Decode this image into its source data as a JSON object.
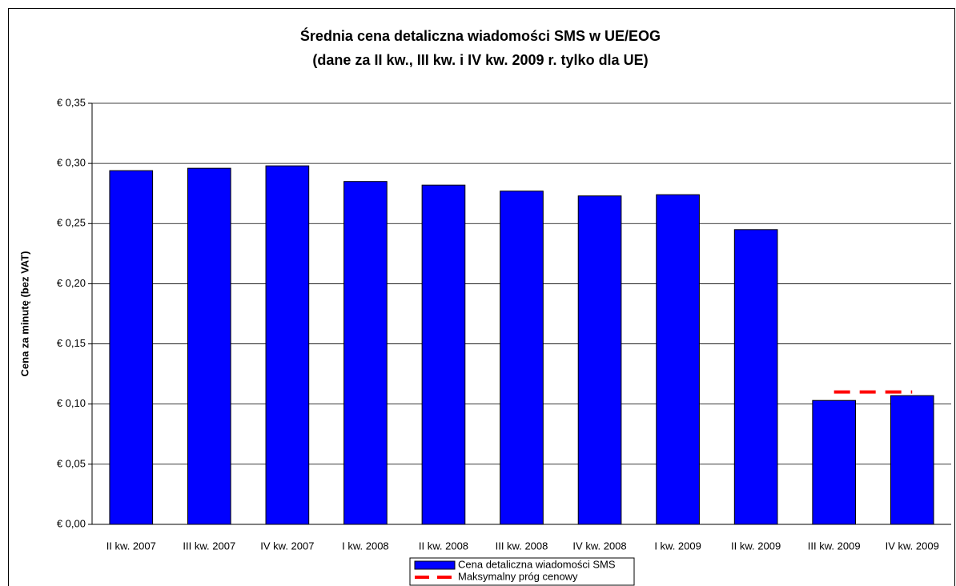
{
  "chart_data": {
    "type": "bar",
    "title": "Średnia cena detaliczna wiadomości SMS w UE/EOG",
    "subtitle": "(dane za II kw., III kw. i IV kw. 2009 r. tylko dla UE)",
    "y_label": "Cena za minutę (bez VAT)",
    "categories": [
      "II kw. 2007",
      "III kw. 2007",
      "IV kw. 2007",
      "I kw. 2008",
      "II kw. 2008",
      "III kw. 2008",
      "IV kw. 2008",
      "I kw. 2009",
      "II kw. 2009",
      "III kw. 2009",
      "IV kw. 2009"
    ],
    "series": [
      {
        "name": "Cena detaliczna wiadomości SMS",
        "type": "bar",
        "color": "#0000ff",
        "values": [
          0.294,
          0.296,
          0.298,
          0.285,
          0.282,
          0.277,
          0.273,
          0.274,
          0.245,
          0.103,
          0.107
        ]
      },
      {
        "name": "Maksymalny próg cenowy",
        "type": "line",
        "color": "#ff0000",
        "values": [
          null,
          null,
          null,
          null,
          null,
          null,
          null,
          null,
          null,
          0.11,
          0.11
        ]
      }
    ],
    "ylim": [
      0,
      0.35
    ],
    "yticks": [
      {
        "value": 0,
        "label": "€ 0,00"
      },
      {
        "value": 0.05,
        "label": "€ 0,05"
      },
      {
        "value": 0.1,
        "label": "€ 0,10"
      },
      {
        "value": 0.15,
        "label": "€ 0,15"
      },
      {
        "value": 0.2,
        "label": "€ 0,20"
      },
      {
        "value": 0.25,
        "label": "€ 0,25"
      },
      {
        "value": 0.3,
        "label": "€ 0,30"
      },
      {
        "value": 0.35,
        "label": "€ 0,35"
      }
    ],
    "grid": true,
    "legend": "bottom"
  }
}
